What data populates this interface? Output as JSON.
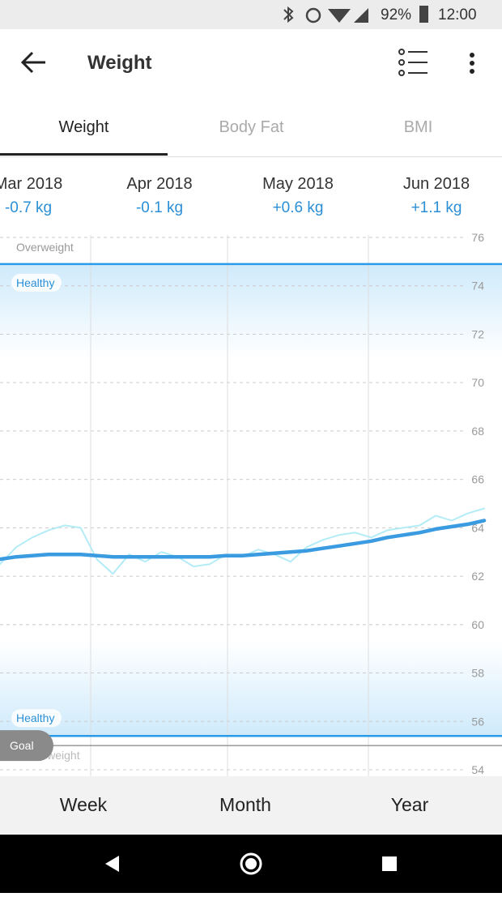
{
  "status_bar": {
    "battery": "92%",
    "time": "12:00"
  },
  "header": {
    "title": "Weight"
  },
  "tabs": [
    "Weight",
    "Body Fat",
    "BMI"
  ],
  "months": [
    {
      "label": "Mar 2018",
      "change": "-0.7 kg"
    },
    {
      "label": "Apr 2018",
      "change": "-0.1 kg"
    },
    {
      "label": "May 2018",
      "change": "+0.6 kg"
    },
    {
      "label": "Jun 2018",
      "change": "+1.1 kg"
    }
  ],
  "chart": {
    "type": "line",
    "ylim": [
      54,
      76
    ],
    "yticks": [
      54,
      56,
      58,
      60,
      62,
      64,
      66,
      68,
      70,
      72,
      74,
      76
    ],
    "grid": true,
    "healthy_range": [
      55.4,
      74.9
    ],
    "goal": 55.0,
    "zone_labels": {
      "over": "Overweight",
      "healthy_top": "Healthy",
      "healthy_bottom": "Healthy",
      "under": "Underweight"
    },
    "goal_label": "Goal",
    "series": [
      {
        "color": "#b3ecf7",
        "values": [
          62.5,
          63.2,
          63.6,
          63.9,
          64.1,
          64.0,
          62.7,
          62.1,
          62.9,
          62.6,
          63.0,
          62.8,
          62.4,
          62.5,
          62.9,
          62.8,
          63.1,
          62.9,
          62.6,
          63.2,
          63.5,
          63.7,
          63.8,
          63.6,
          63.9,
          64.0,
          64.1,
          64.5,
          64.3,
          64.6,
          64.8
        ]
      },
      {
        "color": "#3a9be0",
        "values": [
          62.7,
          62.8,
          62.85,
          62.9,
          62.9,
          62.9,
          62.85,
          62.8,
          62.8,
          62.8,
          62.8,
          62.8,
          62.8,
          62.8,
          62.85,
          62.85,
          62.9,
          62.95,
          63.0,
          63.05,
          63.15,
          63.25,
          63.35,
          63.45,
          63.6,
          63.7,
          63.8,
          63.95,
          64.05,
          64.15,
          64.3
        ]
      }
    ]
  },
  "range_buttons": [
    "Week",
    "Month",
    "Year"
  ]
}
